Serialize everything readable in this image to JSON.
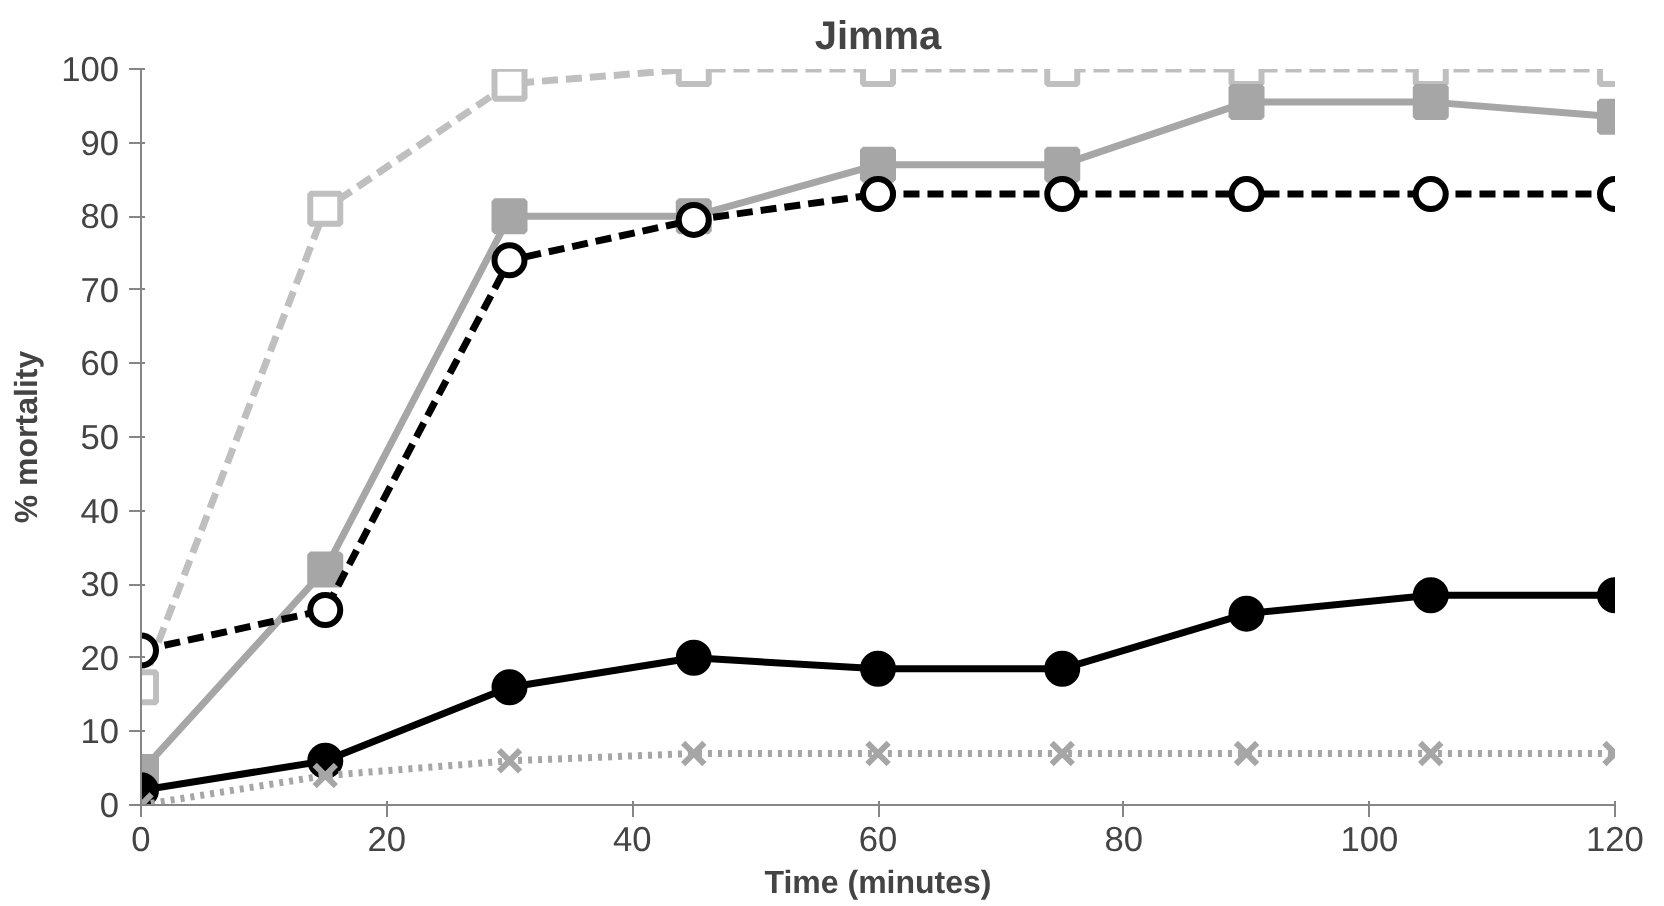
{
  "chart_data": {
    "type": "line",
    "title": "Jimma",
    "xlabel": "Time (minutes)",
    "ylabel": "% mortality",
    "x": [
      0,
      15,
      30,
      45,
      60,
      75,
      90,
      105,
      120
    ],
    "xlim": [
      0,
      120
    ],
    "xticks": [
      0,
      20,
      40,
      60,
      80,
      100,
      120
    ],
    "ylim": [
      0,
      100
    ],
    "yticks": [
      0,
      10,
      20,
      30,
      40,
      50,
      60,
      70,
      80,
      90,
      100
    ],
    "grid": false,
    "series": [
      {
        "color": "#bfbfbf",
        "marker": "square",
        "line_style": "dashed",
        "values": [
          16,
          81,
          98,
          100,
          100,
          100,
          100,
          100,
          100
        ]
      },
      {
        "color": "#a6a6a6",
        "marker": "square",
        "line_style": "solid",
        "values": [
          4.5,
          32,
          80,
          80,
          87,
          87,
          95.5,
          95.5,
          93.5
        ]
      },
      {
        "color": "#000000",
        "marker": "circle",
        "line_style": "dashed",
        "values": [
          21,
          26.5,
          74,
          79.5,
          83,
          83,
          83,
          83,
          83
        ]
      },
      {
        "color": "#000000",
        "marker": "circle",
        "line_style": "solid",
        "values": [
          2,
          6,
          16,
          20,
          18.5,
          18.5,
          26,
          28.5,
          28.5
        ]
      },
      {
        "color": "#a6a6a6",
        "marker": "x",
        "line_style": "dotted",
        "values": [
          0,
          4,
          6,
          7,
          7,
          7,
          7,
          7,
          7
        ]
      }
    ]
  }
}
